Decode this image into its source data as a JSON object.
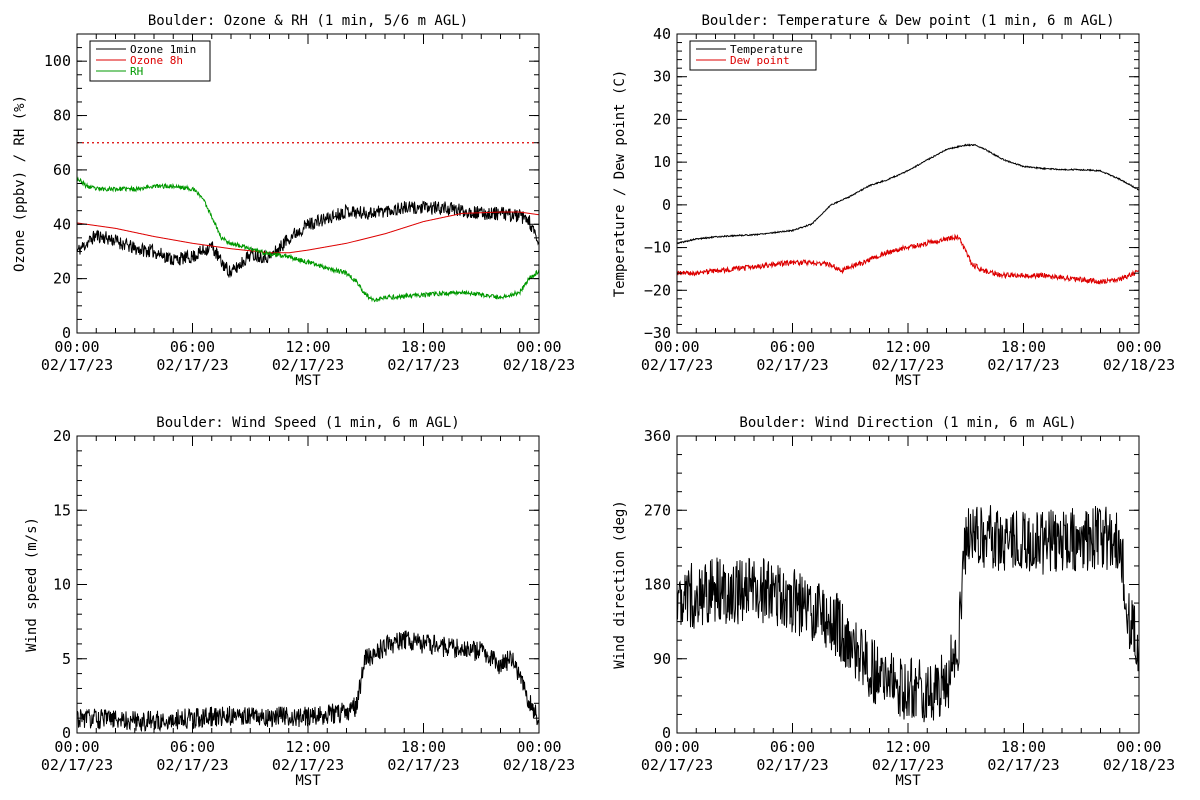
{
  "page": {
    "background": "#ffffff"
  },
  "chart_data": [
    {
      "type": "line",
      "title": "Boulder: Ozone & RH (1 min, 5/6 m AGL)",
      "ylabel": "Ozone (ppbv) / RH (%)",
      "xlabel": "MST",
      "xlim": [
        "02/17/23 00:00",
        "02/18/23 00:00"
      ],
      "x_ticks": [
        {
          "time": "00:00",
          "date": "02/17/23"
        },
        {
          "time": "06:00",
          "date": "02/17/23"
        },
        {
          "time": "12:00",
          "date": "02/17/23"
        },
        {
          "time": "18:00",
          "date": "02/17/23"
        },
        {
          "time": "00:00",
          "date": "02/18/23"
        }
      ],
      "ylim": [
        0,
        110
      ],
      "y_ticks": [
        0,
        20,
        40,
        60,
        80,
        100
      ],
      "legend_position": "top-left",
      "reference_lines": [
        {
          "y": 70,
          "color": "#dd0000",
          "style": "dotted"
        }
      ],
      "series": [
        {
          "name": "Ozone 1min",
          "color": "#000000",
          "noise": 2.5,
          "seed": 11,
          "x": [
            "02/17/23 00:00",
            "02/17/23 01:00",
            "02/17/23 02:00",
            "02/17/23 03:00",
            "02/17/23 04:00",
            "02/17/23 05:00",
            "02/17/23 06:00",
            "02/17/23 07:00",
            "02/17/23 07:30",
            "02/17/23 08:00",
            "02/17/23 09:00",
            "02/17/23 10:00",
            "02/17/23 10:30",
            "02/17/23 11:00",
            "02/17/23 12:00",
            "02/17/23 13:00",
            "02/17/23 14:00",
            "02/17/23 15:00",
            "02/17/23 16:00",
            "02/17/23 17:00",
            "02/17/23 18:00",
            "02/17/23 19:00",
            "02/17/23 20:00",
            "02/17/23 21:00",
            "02/17/23 22:00",
            "02/17/23 23:00",
            "02/17/23 23:30",
            "02/18/23 00:00"
          ],
          "values": [
            30,
            36,
            34,
            31,
            30,
            27,
            28,
            32,
            26,
            22,
            29,
            28,
            31,
            35,
            40,
            42,
            45,
            44,
            45,
            46,
            46,
            46,
            45,
            44,
            44,
            43,
            41,
            32
          ]
        },
        {
          "name": "Ozone 8h",
          "color": "#dd0000",
          "noise": 0,
          "x": [
            "02/17/23 00:00",
            "02/17/23 02:00",
            "02/17/23 04:00",
            "02/17/23 06:00",
            "02/17/23 08:00",
            "02/17/23 10:00",
            "02/17/23 11:00",
            "02/17/23 12:00",
            "02/17/23 14:00",
            "02/17/23 16:00",
            "02/17/23 18:00",
            "02/17/23 20:00",
            "02/17/23 22:00",
            "02/17/23 23:00",
            "02/18/23 00:00"
          ],
          "values": [
            40.5,
            38.5,
            35.5,
            33,
            31,
            29.5,
            29.5,
            30.5,
            33,
            36.5,
            41,
            44,
            44.5,
            44.5,
            43.5
          ]
        },
        {
          "name": "RH",
          "color": "#009900",
          "noise": 0.8,
          "seed": 23,
          "x": [
            "02/17/23 00:00",
            "02/17/23 00:30",
            "02/17/23 01:00",
            "02/17/23 02:00",
            "02/17/23 03:00",
            "02/17/23 04:00",
            "02/17/23 05:00",
            "02/17/23 06:00",
            "02/17/23 06:30",
            "02/17/23 07:00",
            "02/17/23 07:30",
            "02/17/23 08:00",
            "02/17/23 09:00",
            "02/17/23 10:00",
            "02/17/23 11:00",
            "02/17/23 12:00",
            "02/17/23 13:00",
            "02/17/23 14:00",
            "02/17/23 14:30",
            "02/17/23 15:00",
            "02/17/23 15:30",
            "02/17/23 16:00",
            "02/17/23 18:00",
            "02/17/23 20:00",
            "02/17/23 21:00",
            "02/17/23 22:00",
            "02/17/23 23:00",
            "02/17/23 23:30",
            "02/18/23 00:00"
          ],
          "values": [
            57,
            54,
            53,
            53,
            53,
            54,
            54,
            53,
            50,
            43,
            35,
            33,
            31,
            29,
            28,
            26,
            24,
            22,
            19,
            14,
            12,
            13,
            14,
            15,
            14,
            13,
            15,
            20,
            23
          ]
        }
      ]
    },
    {
      "type": "line",
      "title": "Boulder: Temperature & Dew point (1 min, 6 m AGL)",
      "ylabel": "Temperature / Dew point (C)",
      "xlabel": "MST",
      "xlim": [
        "02/17/23 00:00",
        "02/18/23 00:00"
      ],
      "x_ticks": [
        {
          "time": "00:00",
          "date": "02/17/23"
        },
        {
          "time": "06:00",
          "date": "02/17/23"
        },
        {
          "time": "12:00",
          "date": "02/17/23"
        },
        {
          "time": "18:00",
          "date": "02/17/23"
        },
        {
          "time": "00:00",
          "date": "02/18/23"
        }
      ],
      "ylim": [
        -30,
        40
      ],
      "y_ticks": [
        -30,
        -20,
        -10,
        0,
        10,
        20,
        30,
        40
      ],
      "legend_position": "top-left",
      "series": [
        {
          "name": "Temperature",
          "color": "#000000",
          "noise": 0.15,
          "seed": 5,
          "x": [
            "02/17/23 00:00",
            "02/17/23 01:00",
            "02/17/23 02:00",
            "02/17/23 03:00",
            "02/17/23 04:00",
            "02/17/23 05:00",
            "02/17/23 06:00",
            "02/17/23 07:00",
            "02/17/23 08:00",
            "02/17/23 09:00",
            "02/17/23 10:00",
            "02/17/23 11:00",
            "02/17/23 12:00",
            "02/17/23 13:00",
            "02/17/23 14:00",
            "02/17/23 15:00",
            "02/17/23 15:30",
            "02/17/23 16:00",
            "02/17/23 17:00",
            "02/17/23 18:00",
            "02/17/23 19:00",
            "02/17/23 20:00",
            "02/17/23 21:00",
            "02/17/23 22:00",
            "02/17/23 23:00",
            "02/18/23 00:00"
          ],
          "values": [
            -9,
            -8,
            -7.5,
            -7.2,
            -7,
            -6.5,
            -6,
            -4.5,
            0,
            2,
            4.5,
            6,
            8,
            10.5,
            13,
            14,
            14,
            13,
            10.5,
            9,
            8.5,
            8.3,
            8.2,
            8,
            6,
            3.5
          ]
        },
        {
          "name": "Dew point",
          "color": "#dd0000",
          "noise": 0.6,
          "seed": 9,
          "x": [
            "02/17/23 00:00",
            "02/17/23 01:00",
            "02/17/23 02:00",
            "02/17/23 03:00",
            "02/17/23 04:00",
            "02/17/23 05:00",
            "02/17/23 06:00",
            "02/17/23 07:00",
            "02/17/23 08:00",
            "02/17/23 08:30",
            "02/17/23 09:00",
            "02/17/23 10:00",
            "02/17/23 11:00",
            "02/17/23 12:00",
            "02/17/23 13:00",
            "02/17/23 14:00",
            "02/17/23 14:40",
            "02/17/23 15:00",
            "02/17/23 15:20",
            "02/17/23 16:00",
            "02/17/23 17:00",
            "02/17/23 18:00",
            "02/17/23 19:00",
            "02/17/23 20:00",
            "02/17/23 21:00",
            "02/17/23 22:00",
            "02/17/23 23:00",
            "02/18/23 00:00"
          ],
          "values": [
            -16,
            -16,
            -15.5,
            -15,
            -14.5,
            -14,
            -13.5,
            -13.5,
            -14,
            -15.5,
            -14.5,
            -13,
            -11,
            -10,
            -9,
            -8,
            -7.5,
            -11,
            -14,
            -15.5,
            -16.5,
            -16.5,
            -16.5,
            -17,
            -17.5,
            -18,
            -17.5,
            -15.5
          ]
        }
      ]
    },
    {
      "type": "line",
      "title": "Boulder: Wind Speed (1 min, 6 m AGL)",
      "ylabel": "Wind speed (m/s)",
      "xlabel": "MST",
      "xlim": [
        "02/17/23 00:00",
        "02/18/23 00:00"
      ],
      "x_ticks": [
        {
          "time": "00:00",
          "date": "02/17/23"
        },
        {
          "time": "06:00",
          "date": "02/17/23"
        },
        {
          "time": "12:00",
          "date": "02/17/23"
        },
        {
          "time": "18:00",
          "date": "02/17/23"
        },
        {
          "time": "00:00",
          "date": "02/18/23"
        }
      ],
      "ylim": [
        0,
        20
      ],
      "y_ticks": [
        0,
        5,
        10,
        15,
        20
      ],
      "series": [
        {
          "name": "",
          "color": "#000000",
          "noise": 0.7,
          "seed": 31,
          "min": 0,
          "x": [
            "02/17/23 00:00",
            "02/17/23 02:00",
            "02/17/23 04:00",
            "02/17/23 06:00",
            "02/17/23 08:00",
            "02/17/23 10:00",
            "02/17/23 12:00",
            "02/17/23 14:00",
            "02/17/23 14:30",
            "02/17/23 15:00",
            "02/17/23 16:00",
            "02/17/23 17:00",
            "02/17/23 18:00",
            "02/17/23 19:00",
            "02/17/23 20:00",
            "02/17/23 21:00",
            "02/17/23 22:00",
            "02/17/23 22:30",
            "02/17/23 23:00",
            "02/17/23 23:30",
            "02/18/23 00:00"
          ],
          "values": [
            1,
            0.9,
            0.8,
            1,
            1.2,
            1.1,
            1.1,
            1.4,
            1.8,
            5,
            5.8,
            6.3,
            6,
            5.8,
            5.6,
            5.5,
            4.5,
            5,
            4,
            2,
            0.8
          ]
        }
      ]
    },
    {
      "type": "line",
      "title": "Boulder: Wind Direction (1 min, 6 m AGL)",
      "ylabel": "Wind direction (deg)",
      "xlabel": "MST",
      "xlim": [
        "02/17/23 00:00",
        "02/18/23 00:00"
      ],
      "x_ticks": [
        {
          "time": "00:00",
          "date": "02/17/23"
        },
        {
          "time": "06:00",
          "date": "02/17/23"
        },
        {
          "time": "12:00",
          "date": "02/17/23"
        },
        {
          "time": "18:00",
          "date": "02/17/23"
        },
        {
          "time": "00:00",
          "date": "02/18/23"
        }
      ],
      "ylim": [
        0,
        360
      ],
      "y_ticks": [
        0,
        90,
        180,
        270,
        360
      ],
      "series": [
        {
          "name": "",
          "color": "#000000",
          "noise": 40,
          "seed": 47,
          "min": 0,
          "max": 360,
          "x": [
            "02/17/23 00:00",
            "02/17/23 01:00",
            "02/17/23 02:00",
            "02/17/23 03:00",
            "02/17/23 04:00",
            "02/17/23 05:00",
            "02/17/23 06:00",
            "02/17/23 07:00",
            "02/17/23 08:00",
            "02/17/23 09:00",
            "02/17/23 10:00",
            "02/17/23 11:00",
            "02/17/23 12:00",
            "02/17/23 13:00",
            "02/17/23 14:00",
            "02/17/23 14:40",
            "02/17/23 15:00",
            "02/17/23 16:00",
            "02/17/23 18:00",
            "02/17/23 20:00",
            "02/17/23 22:00",
            "02/17/23 22:30",
            "02/17/23 23:00",
            "02/17/23 23:30",
            "02/18/23 00:00"
          ],
          "values": [
            170,
            165,
            175,
            170,
            175,
            170,
            160,
            150,
            140,
            110,
            80,
            60,
            55,
            50,
            60,
            120,
            235,
            238,
            230,
            232,
            236,
            236,
            230,
            130,
            110
          ]
        }
      ]
    }
  ]
}
